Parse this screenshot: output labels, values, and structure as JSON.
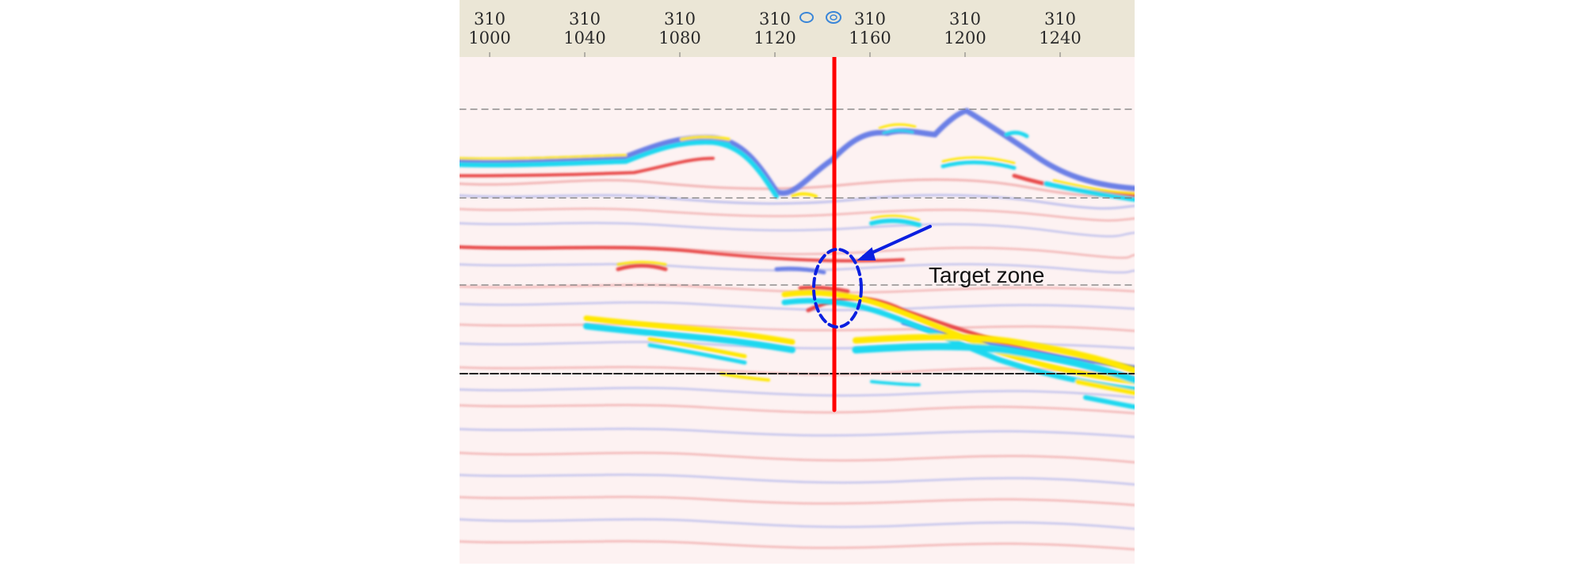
{
  "inline_labels": [
    {
      "top": "310",
      "bottom": "1000"
    },
    {
      "top": "310",
      "bottom": "1040"
    },
    {
      "top": "310",
      "bottom": "1080"
    },
    {
      "top": "310",
      "bottom": "1120"
    },
    {
      "top": "310",
      "bottom": "1160"
    },
    {
      "top": "310",
      "bottom": "1200"
    },
    {
      "top": "310",
      "bottom": "1240"
    }
  ],
  "annotation": {
    "text": "Target zone"
  },
  "colors": {
    "background_tint": "#fdf0f0",
    "positive_amplitude": "#e03c3c",
    "negative_amplitude": "#4a5ee0",
    "strong_reflector_yellow": "#ffe800",
    "strong_reflector_cyan": "#1fd8f0",
    "well_line": "#ff0000",
    "annotation_blue": "#0b1fe0",
    "axis_bar": "#ebe6d6"
  },
  "icons": [
    "well-marker-icon",
    "well-marker-icon"
  ]
}
